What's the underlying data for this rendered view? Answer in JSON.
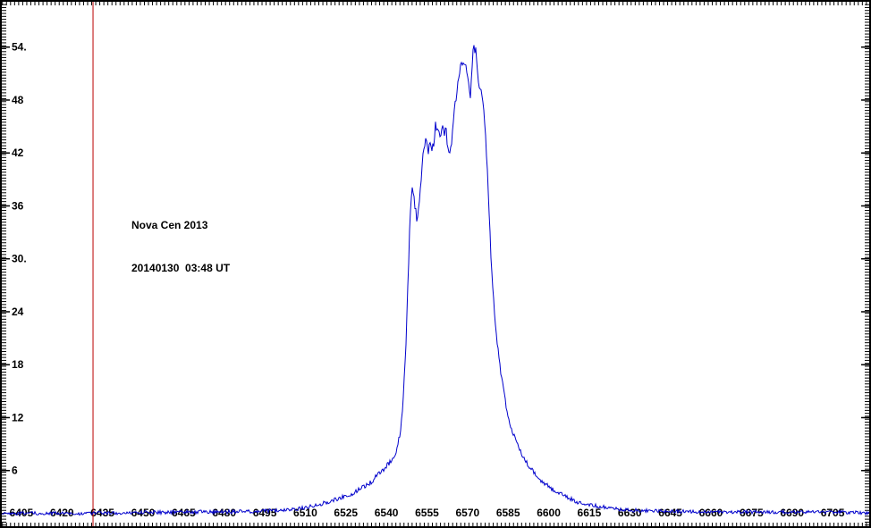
{
  "annotation": {
    "line1": "Nova Cen 2013",
    "line2": "20140130  03:48 UT"
  },
  "colors": {
    "background": "#ffffff",
    "frame": "#000000",
    "trace": "#0000cc",
    "marker_line": "#bb0000",
    "text": "#000000"
  },
  "chart_data": {
    "type": "line",
    "title": "",
    "xlabel": "",
    "ylabel": "",
    "x_axis": {
      "range": [
        6397.1,
        6719.2
      ],
      "major_tick_values": [
        6405,
        6420,
        6435,
        6450,
        6465,
        6480,
        6495,
        6510,
        6525,
        6540,
        6555,
        6570,
        6585,
        6600,
        6615,
        6630,
        6645,
        6660,
        6675,
        6690,
        6705
      ],
      "tick_labels": [
        "6405",
        "6420",
        "6435",
        "6450",
        "6465",
        "6480",
        "6495",
        "6510",
        "6525",
        "6540",
        "6555",
        "6570",
        "6585",
        "6600",
        "6615",
        "6630",
        "6645",
        "6660",
        "6675",
        "6690",
        "6705"
      ],
      "minor_tick_step": 1.5
    },
    "y_axis": {
      "range": [
        -0.51,
        59.34
      ],
      "major_tick_values": [
        54,
        48,
        42,
        36,
        30,
        24,
        18,
        12,
        6
      ],
      "tick_labels": [
        "54.",
        "48",
        "42",
        "36",
        "30.",
        "24",
        "18",
        "12",
        "6"
      ],
      "minor_tick_step": 0.3333
    },
    "grid": false,
    "legend": false,
    "marker_line": {
      "wavelength": 6431.5,
      "color": "#bb0000"
    },
    "series": [
      {
        "name": "spectrum-trace",
        "color": "#0000cc",
        "points": [
          [
            6397,
            1.2,
            0.12
          ],
          [
            6402,
            1.1,
            0.12
          ],
          [
            6408,
            1.2,
            0.12
          ],
          [
            6414,
            1.1,
            0.12
          ],
          [
            6420,
            1.2,
            0.12
          ],
          [
            6426,
            1.1,
            0.12
          ],
          [
            6432,
            1.2,
            0.12
          ],
          [
            6438,
            1.2,
            0.12
          ],
          [
            6444,
            1.2,
            0.13
          ],
          [
            6450,
            1.25,
            0.13
          ],
          [
            6456,
            1.25,
            0.14
          ],
          [
            6462,
            1.3,
            0.14
          ],
          [
            6468,
            1.3,
            0.14
          ],
          [
            6474,
            1.3,
            0.15
          ],
          [
            6480,
            1.3,
            0.15
          ],
          [
            6486,
            1.35,
            0.15
          ],
          [
            6492,
            1.4,
            0.14
          ],
          [
            6498,
            1.45,
            0.13
          ],
          [
            6503,
            1.55,
            0.13
          ],
          [
            6508,
            1.7,
            0.14
          ],
          [
            6512,
            1.95,
            0.15
          ],
          [
            6516,
            2.25,
            0.15
          ],
          [
            6520,
            2.6,
            0.16
          ],
          [
            6524,
            3.0,
            0.16
          ],
          [
            6528,
            3.5,
            0.17
          ],
          [
            6532,
            4.2,
            0.18
          ],
          [
            6535,
            4.9,
            0.2
          ],
          [
            6538,
            5.9,
            0.22
          ],
          [
            6540,
            6.6,
            0.25
          ],
          [
            6542,
            7.3,
            0.28
          ],
          [
            6543.5,
            8.2,
            0.3
          ],
          [
            6544.8,
            9.8,
            0.3
          ],
          [
            6545.6,
            11.5,
            0.3
          ],
          [
            6546.3,
            14.5,
            0.3
          ],
          [
            6546.9,
            18.0,
            0.3
          ],
          [
            6547.3,
            21.0,
            0.32
          ],
          [
            6547.7,
            24.5,
            0.32
          ],
          [
            6548.1,
            28.5,
            0.32
          ],
          [
            6548.5,
            32.5,
            0.3
          ],
          [
            6549.0,
            36.0,
            0.3
          ],
          [
            6549.5,
            37.8,
            0.3
          ],
          [
            6550.1,
            37.0,
            0.3
          ],
          [
            6550.7,
            35.6,
            0.3
          ],
          [
            6551.3,
            34.4,
            0.3
          ],
          [
            6551.9,
            36.0,
            0.3
          ],
          [
            6552.5,
            37.8,
            0.3
          ],
          [
            6553.0,
            39.5,
            0.32
          ],
          [
            6553.6,
            41.9,
            0.35
          ],
          [
            6554.3,
            43.2,
            0.38
          ],
          [
            6554.9,
            43.6,
            0.4
          ],
          [
            6555.6,
            42.3,
            0.4
          ],
          [
            6556.3,
            43.5,
            0.42
          ],
          [
            6557.0,
            42.4,
            0.4
          ],
          [
            6557.7,
            43.6,
            0.4
          ],
          [
            6558.2,
            45.5,
            0.38
          ],
          [
            6558.7,
            43.9,
            0.38
          ],
          [
            6559.3,
            45.4,
            0.38
          ],
          [
            6560.0,
            43.5,
            0.38
          ],
          [
            6560.7,
            45.1,
            0.38
          ],
          [
            6561.4,
            44.3,
            0.38
          ],
          [
            6562.0,
            45.0,
            0.36
          ],
          [
            6562.7,
            42.6,
            0.34
          ],
          [
            6563.2,
            41.5,
            0.34
          ],
          [
            6563.8,
            42.4,
            0.34
          ],
          [
            6564.4,
            44.4,
            0.34
          ],
          [
            6565.0,
            46.2,
            0.34
          ],
          [
            6565.6,
            47.9,
            0.34
          ],
          [
            6566.2,
            49.5,
            0.32
          ],
          [
            6566.8,
            51.0,
            0.32
          ],
          [
            6567.4,
            51.9,
            0.3
          ],
          [
            6568.0,
            52.3,
            0.3
          ],
          [
            6568.7,
            51.8,
            0.3
          ],
          [
            6569.4,
            51.6,
            0.3
          ],
          [
            6570.0,
            50.9,
            0.28
          ],
          [
            6570.6,
            49.2,
            0.26
          ],
          [
            6571.0,
            48.3,
            0.26
          ],
          [
            6571.5,
            50.9,
            0.26
          ],
          [
            6572.0,
            53.6,
            0.24
          ],
          [
            6572.4,
            54.1,
            0.22
          ],
          [
            6572.7,
            53.3,
            0.22
          ],
          [
            6573.0,
            53.9,
            0.22
          ],
          [
            6573.4,
            52.4,
            0.24
          ],
          [
            6573.9,
            50.6,
            0.26
          ],
          [
            6574.4,
            48.9,
            0.28
          ],
          [
            6574.9,
            49.3,
            0.28
          ],
          [
            6575.4,
            48.1,
            0.28
          ],
          [
            6576.0,
            46.6,
            0.28
          ],
          [
            6576.6,
            44.4,
            0.28
          ],
          [
            6577.2,
            40.8,
            0.28
          ],
          [
            6577.8,
            36.8,
            0.28
          ],
          [
            6578.5,
            31.4,
            0.28
          ],
          [
            6579.2,
            27.4,
            0.28
          ],
          [
            6580.0,
            23.8,
            0.26
          ],
          [
            6580.7,
            21.3,
            0.24
          ],
          [
            6581.5,
            19.0,
            0.24
          ],
          [
            6582.3,
            17.2,
            0.22
          ],
          [
            6583.2,
            15.4,
            0.22
          ],
          [
            6584.2,
            13.5,
            0.2
          ],
          [
            6585.1,
            11.8,
            0.2
          ],
          [
            6586.1,
            10.8,
            0.2
          ],
          [
            6587.1,
            10.0,
            0.2
          ],
          [
            6588.1,
            9.2,
            0.19
          ],
          [
            6589.1,
            8.5,
            0.19
          ],
          [
            6590.2,
            7.8,
            0.18
          ],
          [
            6591.6,
            7.0,
            0.18
          ],
          [
            6593.1,
            6.3,
            0.18
          ],
          [
            6594.6,
            5.7,
            0.18
          ],
          [
            6596.2,
            5.2,
            0.17
          ],
          [
            6598.2,
            4.6,
            0.17
          ],
          [
            6600.2,
            4.1,
            0.17
          ],
          [
            6602.3,
            3.7,
            0.16
          ],
          [
            6604.7,
            3.3,
            0.16
          ],
          [
            6607.2,
            2.9,
            0.16
          ],
          [
            6610.2,
            2.5,
            0.16
          ],
          [
            6613.6,
            2.2,
            0.15
          ],
          [
            6617.1,
            2.0,
            0.15
          ],
          [
            6621.2,
            1.8,
            0.15
          ],
          [
            6626.2,
            1.6,
            0.14
          ],
          [
            6632.2,
            1.5,
            0.14
          ],
          [
            6640.2,
            1.4,
            0.13
          ],
          [
            6650.2,
            1.35,
            0.13
          ],
          [
            6662.2,
            1.3,
            0.13
          ],
          [
            6676.2,
            1.3,
            0.13
          ],
          [
            6690.2,
            1.3,
            0.13
          ],
          [
            6705.2,
            1.3,
            0.13
          ],
          [
            6719.2,
            1.2,
            0.13
          ]
        ]
      }
    ]
  }
}
